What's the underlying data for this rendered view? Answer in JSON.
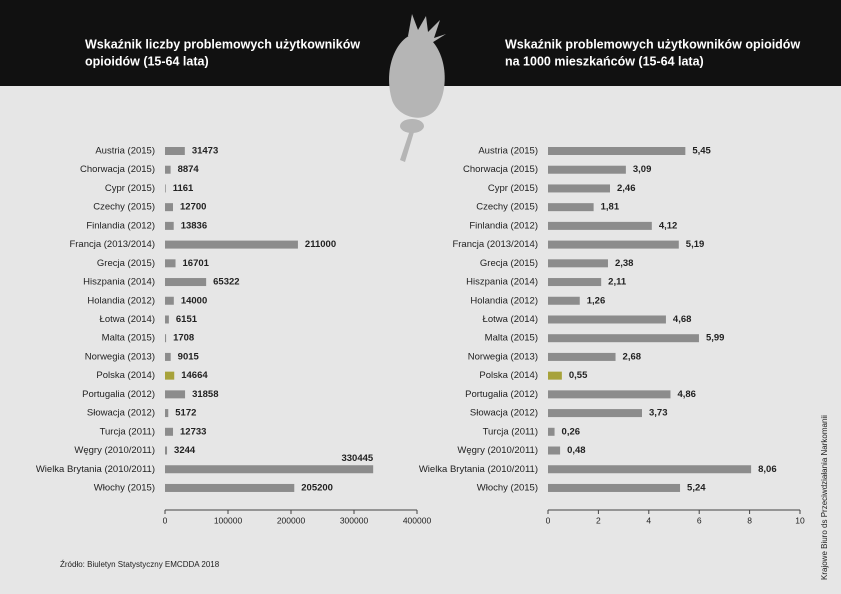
{
  "chart_data": [
    {
      "type": "hbar",
      "title": [
        "Wskaźnik liczby problemowych użytkowników",
        " opioidów (15-64 lata)"
      ],
      "categories": [
        "Austria (2015)",
        "Chorwacja (2015)",
        "Cypr (2015)",
        "Czechy (2015)",
        "Finlandia (2012)",
        "Francja (2013/2014)",
        "Grecja (2015)",
        "Hiszpania (2014)",
        "Holandia (2012)",
        "Łotwa (2014)",
        "Malta (2015)",
        "Norwegia  (2013)",
        "Polska (2014)",
        "Portugalia (2012)",
        "Słowacja (2012)",
        "Turcja (2011)",
        "Węgry (2010/2011)",
        "Wielka Brytania (2010/2011)",
        "Włochy (2015)"
      ],
      "values": [
        31473,
        8874,
        1161,
        12700,
        13836,
        211000,
        16701,
        65322,
        14000,
        6151,
        1708,
        9015,
        14664,
        31858,
        5172,
        12733,
        3244,
        330445,
        205200
      ],
      "colors": [
        "#8c8c8c",
        "#8c8c8c",
        "#8c8c8c",
        "#8c8c8c",
        "#8c8c8c",
        "#8c8c8c",
        "#8c8c8c",
        "#8c8c8c",
        "#8c8c8c",
        "#8c8c8c",
        "#8c8c8c",
        "#8c8c8c",
        "#a7a23a",
        "#8c8c8c",
        "#8c8c8c",
        "#8c8c8c",
        "#8c8c8c",
        "#8c8c8c",
        "#8c8c8c"
      ],
      "xlim": [
        0,
        400000
      ],
      "xticks": [
        0,
        100000,
        200000,
        300000,
        400000
      ]
    },
    {
      "type": "hbar",
      "title": [
        "Wskaźnik problemowych użytkowników opioidów",
        "na 1000 mieszkańców (15-64 lata)"
      ],
      "categories": [
        "Austria (2015)",
        "Chorwacja (2015)",
        "Cypr (2015)",
        "Czechy (2015)",
        "Finlandia (2012)",
        "Francja (2013/2014)",
        "Grecja (2015)",
        "Hiszpania (2014)",
        "Holandia (2012)",
        "Łotwa (2014)",
        "Malta (2015)",
        "Norwegia  (2013)",
        "Polska (2014)",
        "Portugalia (2012)",
        "Słowacja (2012)",
        "Turcja (2011)",
        "Węgry (2010/2011)",
        "Wielka Brytania (2010/2011)",
        "Włochy (2015)"
      ],
      "values": [
        5.45,
        3.09,
        2.46,
        1.81,
        4.12,
        5.19,
        2.38,
        2.11,
        1.26,
        4.68,
        5.99,
        2.68,
        0.55,
        4.86,
        3.73,
        0.26,
        0.48,
        8.06,
        5.24
      ],
      "value_labels": [
        "5,45",
        "3,09",
        "2,46",
        "1,81",
        "4,12",
        "5,19",
        "2,38",
        "2,11",
        "1,26",
        "4,68",
        "5,99",
        "2,68",
        "0,55",
        "4,86",
        "3,73",
        "0,26",
        "0,48",
        "8,06",
        "5,24"
      ],
      "colors": [
        "#8c8c8c",
        "#8c8c8c",
        "#8c8c8c",
        "#8c8c8c",
        "#8c8c8c",
        "#8c8c8c",
        "#8c8c8c",
        "#8c8c8c",
        "#8c8c8c",
        "#8c8c8c",
        "#8c8c8c",
        "#8c8c8c",
        "#a7a23a",
        "#8c8c8c",
        "#8c8c8c",
        "#8c8c8c",
        "#8c8c8c",
        "#8c8c8c",
        "#8c8c8c"
      ],
      "xlim": [
        0,
        10
      ],
      "xticks": [
        0,
        2,
        4,
        6,
        8,
        10
      ]
    }
  ],
  "source": "Źródło: Biuletyn Statystyczny EMCDDA 2018",
  "credit": "Krajowe Biuro ds Przeciwdziałania Narkomanii"
}
